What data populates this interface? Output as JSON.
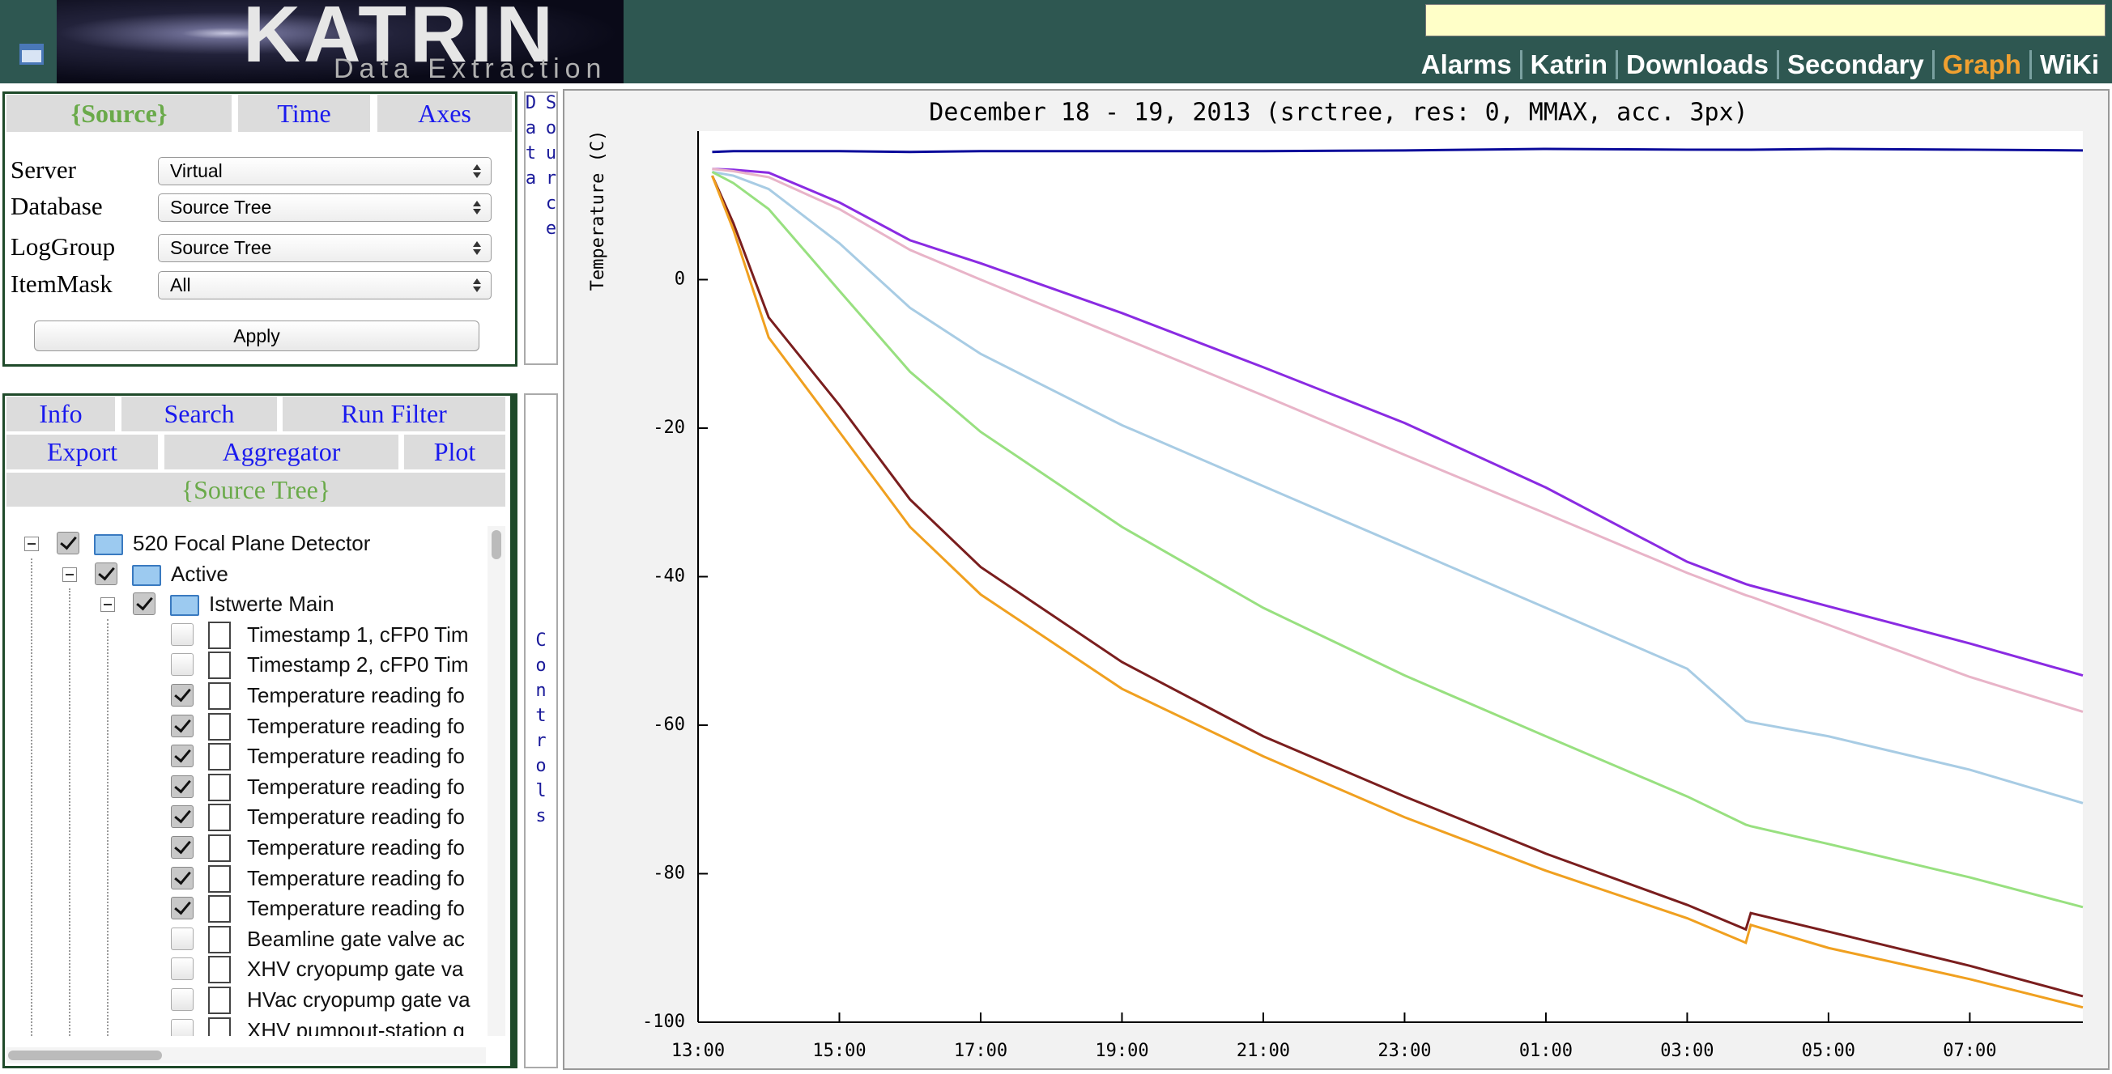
{
  "header": {
    "logo": "KATRIN",
    "subtitle": "Data Extraction",
    "nav": [
      "Alarms",
      "Katrin",
      "Downloads",
      "Secondary",
      "Graph",
      "WiKi"
    ],
    "active_nav": 4
  },
  "source_panel": {
    "tabs": [
      "{Source}",
      "Time",
      "Axes"
    ],
    "active_tab": 0,
    "fields": [
      {
        "label": "Server",
        "value": "Virtual"
      },
      {
        "label": "Database",
        "value": "Source Tree"
      },
      {
        "label": "LogGroup",
        "value": "Source Tree"
      },
      {
        "label": "ItemMask",
        "value": "All"
      }
    ],
    "button": "Apply",
    "side_tab": "Data Source"
  },
  "controls_panel": {
    "tabs": [
      [
        "Info",
        "Search",
        "Run Filter"
      ],
      [
        "Export",
        "Aggregator",
        "Plot"
      ]
    ],
    "tree_title": "{Source Tree}",
    "side_tab": "Controls",
    "tree": [
      {
        "label": "520 Focal Plane Detector",
        "level": 0,
        "checked": true,
        "kind": "folder"
      },
      {
        "label": "Active",
        "level": 1,
        "checked": true,
        "kind": "folder"
      },
      {
        "label": "Istwerte Main",
        "level": 2,
        "checked": true,
        "kind": "folder"
      },
      {
        "label": "Timestamp 1, cFP0 Tim",
        "level": 3,
        "checked": false,
        "kind": "file"
      },
      {
        "label": "Timestamp 2, cFP0 Tim",
        "level": 3,
        "checked": false,
        "kind": "file"
      },
      {
        "label": "Temperature reading fo",
        "level": 3,
        "checked": true,
        "kind": "file"
      },
      {
        "label": "Temperature reading fo",
        "level": 3,
        "checked": true,
        "kind": "file"
      },
      {
        "label": "Temperature reading fo",
        "level": 3,
        "checked": true,
        "kind": "file"
      },
      {
        "label": "Temperature reading fo",
        "level": 3,
        "checked": true,
        "kind": "file"
      },
      {
        "label": "Temperature reading fo",
        "level": 3,
        "checked": true,
        "kind": "file"
      },
      {
        "label": "Temperature reading fo",
        "level": 3,
        "checked": true,
        "kind": "file"
      },
      {
        "label": "Temperature reading fo",
        "level": 3,
        "checked": true,
        "kind": "file"
      },
      {
        "label": "Temperature reading fo",
        "level": 3,
        "checked": true,
        "kind": "file"
      },
      {
        "label": "Beamline gate valve ac",
        "level": 3,
        "checked": false,
        "kind": "file"
      },
      {
        "label": "XHV cryopump gate va",
        "level": 3,
        "checked": false,
        "kind": "file"
      },
      {
        "label": "HVac cryopump gate va",
        "level": 3,
        "checked": false,
        "kind": "file"
      },
      {
        "label": "XHV pumpout-station g",
        "level": 3,
        "checked": false,
        "kind": "file"
      }
    ]
  },
  "chart_data": {
    "type": "line",
    "title": "December 18 - 19, 2013 (srctree, res: 0, MMAX, acc. 3px)",
    "y_label": "Temperature (C)",
    "x": [
      13.2,
      13.5,
      14,
      15,
      16,
      17,
      19,
      21,
      23,
      25,
      27,
      27.83,
      27.9,
      29,
      31,
      32.6
    ],
    "xlim": [
      13,
      32.6
    ],
    "xticks": [
      {
        "value": 13,
        "label": "13:00"
      },
      {
        "value": 15,
        "label": "15:00"
      },
      {
        "value": 17,
        "label": "17:00"
      },
      {
        "value": 19,
        "label": "19:00"
      },
      {
        "value": 21,
        "label": "21:00"
      },
      {
        "value": 23,
        "label": "23:00"
      },
      {
        "value": 25,
        "label": "01:00"
      },
      {
        "value": 27,
        "label": "03:00"
      },
      {
        "value": 29,
        "label": "05:00"
      },
      {
        "value": 31,
        "label": "07:00"
      }
    ],
    "ylim": [
      -100,
      20
    ],
    "yticks": [
      -100,
      -80,
      -60,
      -40,
      -20,
      0
    ],
    "grid": false,
    "series": [
      {
        "color": "#0a0a9a",
        "values": [
          17.2,
          17.3,
          17.3,
          17.3,
          17.2,
          17.3,
          17.3,
          17.3,
          17.4,
          17.6,
          17.5,
          17.5,
          17.5,
          17.6,
          17.5,
          17.4
        ]
      },
      {
        "color": "#8a2be2",
        "values": [
          14.9,
          14.8,
          14.4,
          10.4,
          5.3,
          2.2,
          -4.5,
          -11.8,
          -19.3,
          -28,
          -38,
          -41,
          -41.2,
          -44,
          -49,
          -53.3
        ]
      },
      {
        "color": "#e8b4c8",
        "values": [
          14.9,
          14.6,
          13.8,
          9.5,
          4,
          0,
          -7.8,
          -15.6,
          -23.6,
          -31.5,
          -39.5,
          -42.5,
          -42.7,
          -46.5,
          -53.5,
          -58.2
        ]
      },
      {
        "color": "#a8cce4",
        "values": [
          14.5,
          14,
          12.2,
          4.9,
          -3.8,
          -10,
          -19.6,
          -27.8,
          -36,
          -44.2,
          -52.4,
          -59.4,
          -59.6,
          -61.5,
          -66,
          -70.5
        ]
      },
      {
        "color": "#98e080",
        "values": [
          14.5,
          13,
          9.5,
          -1.5,
          -12.4,
          -20.5,
          -33.3,
          -44.2,
          -53.3,
          -61.5,
          -69.6,
          -73.4,
          -73.6,
          -76,
          -80.5,
          -84.5
        ]
      },
      {
        "color": "#7a1e1e",
        "values": [
          14,
          7.6,
          -5.1,
          -16.9,
          -29.6,
          -38.7,
          -51.5,
          -61.5,
          -69.6,
          -77.3,
          -84.2,
          -87.5,
          -85.3,
          -87.8,
          -92.4,
          -96.5
        ]
      },
      {
        "color": "#f0a020",
        "values": [
          14,
          6.7,
          -7.8,
          -20.5,
          -33.3,
          -42.4,
          -55.1,
          -64.2,
          -72.4,
          -79.6,
          -86,
          -89.3,
          -86.9,
          -90,
          -94.2,
          -98
        ]
      }
    ]
  }
}
